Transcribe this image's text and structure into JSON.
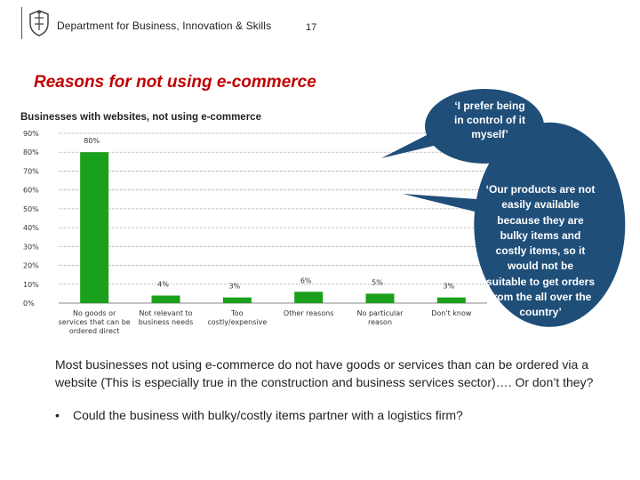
{
  "header": {
    "department": "Department for Business, Innovation & Skills",
    "slide_number": "17"
  },
  "title": "Reasons for not using e-commerce",
  "chart_data": {
    "type": "bar",
    "title": "Businesses with websites, not using e-commerce",
    "categories": [
      [
        "No goods or",
        "services that can be",
        "ordered direct"
      ],
      [
        "Not relevant to",
        "business needs"
      ],
      [
        "Too",
        "costly/expensive"
      ],
      [
        "Other reasons"
      ],
      [
        "No particular",
        "reason"
      ],
      [
        "Don't know"
      ]
    ],
    "values": [
      80,
      4,
      3,
      6,
      5,
      3
    ],
    "value_labels": [
      "80%",
      "4%",
      "3%",
      "6%",
      "5%",
      "3%"
    ],
    "ylim": [
      0,
      90
    ],
    "yticks": [
      0,
      10,
      20,
      30,
      40,
      50,
      60,
      70,
      80,
      90
    ],
    "ytick_labels": [
      "0%",
      "10%",
      "20%",
      "30%",
      "40%",
      "50%",
      "60%",
      "70%",
      "80%",
      "90%"
    ],
    "bar_color": "#1aa01a",
    "grid": true
  },
  "callouts": [
    {
      "lines": [
        "‘I prefer being",
        "in control of it",
        "myself’"
      ]
    },
    {
      "lines": [
        "‘Our products are not",
        "easily available",
        "because they are",
        "bulky items and",
        "costly items, so it",
        "would not be",
        "suitable to get orders",
        "from the all over the",
        "country’"
      ]
    }
  ],
  "callout_color": "#1f4e79",
  "body_text": "Most businesses not using e-commerce do not have goods or services than can be ordered via a website (This is especially true in the construction and business services sector)…. Or don’t they?",
  "bullet": "•",
  "bullet_text": "Could the business with bulky/costly items partner with a logistics firm?"
}
